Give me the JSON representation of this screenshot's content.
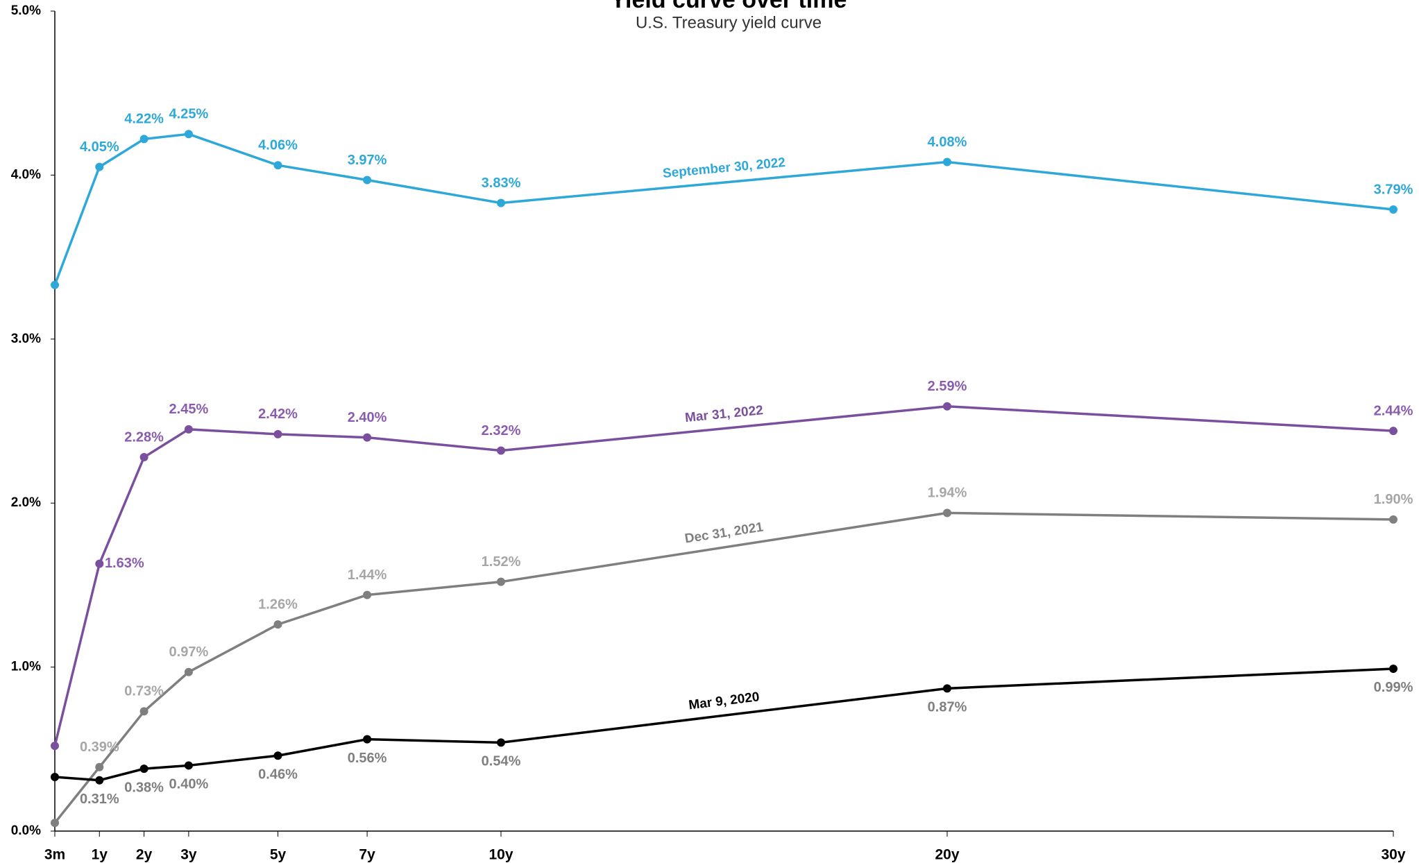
{
  "chart_data": {
    "type": "line",
    "title": "Yield curve over time",
    "subtitle": "U.S. Treasury yield curve",
    "x": [
      0,
      1,
      2,
      3,
      5,
      7,
      10,
      20,
      30
    ],
    "xlim": [
      0,
      30
    ],
    "xticks": [
      {
        "value": 0,
        "label": "3m"
      },
      {
        "value": 1,
        "label": "1y"
      },
      {
        "value": 2,
        "label": "2y"
      },
      {
        "value": 3,
        "label": "3y"
      },
      {
        "value": 5,
        "label": "5y"
      },
      {
        "value": 7,
        "label": "7y"
      },
      {
        "value": 10,
        "label": "10y"
      },
      {
        "value": 20,
        "label": "20y"
      },
      {
        "value": 30,
        "label": "30y"
      }
    ],
    "ylim": [
      0,
      5
    ],
    "yticks": [
      {
        "value": 0,
        "label": "0.0%"
      },
      {
        "value": 1,
        "label": "1.0%"
      },
      {
        "value": 2,
        "label": "2.0%"
      },
      {
        "value": 3,
        "label": "3.0%"
      },
      {
        "value": 4,
        "label": "4.0%"
      },
      {
        "value": 5,
        "label": "5.0%"
      }
    ],
    "series": [
      {
        "name": "September 30, 2022",
        "color": "#2ea8d8",
        "label_color": "#2ea8d8",
        "values": [
          3.33,
          4.05,
          4.22,
          4.25,
          4.06,
          3.97,
          3.83,
          4.08,
          3.79
        ],
        "value_labels": [
          null,
          "4.05%",
          "4.22%",
          "4.25%",
          "4.06%",
          "3.97%",
          "3.83%",
          "4.08%",
          "3.79%"
        ]
      },
      {
        "name": "Mar 31, 2022",
        "color": "#7a4f9e",
        "label_color": "#8a5cb0",
        "values": [
          0.52,
          1.63,
          2.28,
          2.45,
          2.42,
          2.4,
          2.32,
          2.59,
          2.44
        ],
        "value_labels": [
          null,
          "1.63%",
          "2.28%",
          "2.45%",
          "2.42%",
          "2.40%",
          "2.32%",
          "2.59%",
          "2.44%"
        ]
      },
      {
        "name": "Dec 31, 2021",
        "color": "#7f7f7f",
        "label_color": "#a6a6a6",
        "values": [
          0.05,
          0.39,
          0.73,
          0.97,
          1.26,
          1.44,
          1.52,
          1.94,
          1.9
        ],
        "value_labels": [
          null,
          "0.39%",
          "0.73%",
          "0.97%",
          "1.26%",
          "1.44%",
          "1.52%",
          "1.94%",
          "1.90%"
        ]
      },
      {
        "name": "Mar 9, 2020",
        "color": "#000000",
        "label_color": "#7f7f7f",
        "values": [
          0.33,
          0.31,
          0.38,
          0.4,
          0.46,
          0.56,
          0.54,
          0.87,
          0.99
        ],
        "value_labels": [
          null,
          "0.31%",
          "0.38%",
          "0.40%",
          "0.46%",
          "0.56%",
          "0.54%",
          "0.87%",
          "0.99%"
        ]
      }
    ]
  }
}
